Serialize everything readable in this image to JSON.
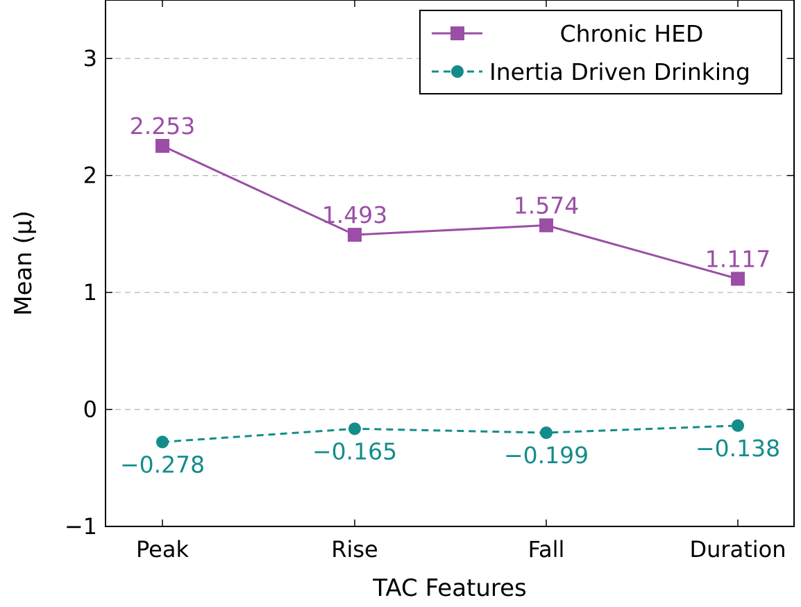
{
  "chart_data": {
    "type": "line",
    "title": "",
    "xlabel": "TAC Features",
    "ylabel": "Mean (μ)",
    "categories": [
      "Peak",
      "Rise",
      "Fall",
      "Duration"
    ],
    "ylim": [
      -1,
      3.5
    ],
    "yticks": [
      -1,
      0,
      1,
      2,
      3
    ],
    "ytick_labels": [
      "−1",
      "0",
      "1",
      "2",
      "3"
    ],
    "grid": "horizontal dashed",
    "legend_position": "top-right",
    "series": [
      {
        "name": "Chronic HED",
        "values": [
          2.253,
          1.493,
          1.574,
          1.117
        ],
        "labels": [
          "2.253",
          "1.493",
          "1.574",
          "1.117"
        ],
        "color": "#9b4ea6",
        "marker": "square",
        "line_style": "solid"
      },
      {
        "name": "Inertia Driven Drinking",
        "values": [
          -0.278,
          -0.165,
          -0.199,
          -0.138
        ],
        "labels": [
          "−0.278",
          "−0.165",
          "−0.199",
          "−0.138"
        ],
        "color": "#138d8a",
        "marker": "circle",
        "line_style": "dashed"
      }
    ]
  }
}
